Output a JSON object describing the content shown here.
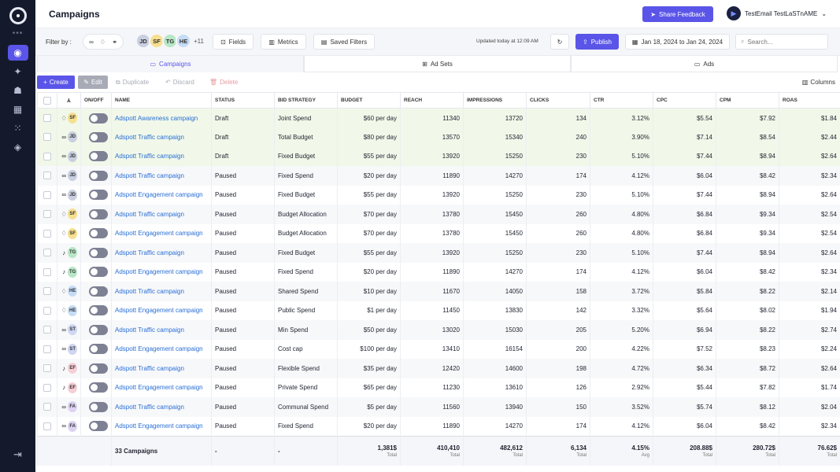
{
  "header": {
    "title": "Campaigns",
    "share_feedback": "Share Feedback",
    "user_name": "TestEmail TestLaSTnAME"
  },
  "filterbar": {
    "filter_label": "Filter by :",
    "avatars": [
      {
        "initials": "JD",
        "color": "#c9cfe0"
      },
      {
        "initials": "SF",
        "color": "#f6df8f"
      },
      {
        "initials": "TG",
        "color": "#b8e6c6"
      },
      {
        "initials": "HE",
        "color": "#c6dcf5"
      }
    ],
    "avatars_more": "+11",
    "fields": "Fields",
    "metrics": "Metrics",
    "saved_filters": "Saved Filters",
    "updated": "Updated today at 12:09 AM",
    "publish": "Publish",
    "date_range": "Jan 18, 2024 to Jan 24, 2024",
    "search_placeholder": "Search..."
  },
  "tabs": [
    {
      "label": "Campaigns",
      "icon": "folder-icon"
    },
    {
      "label": "Ad Sets",
      "icon": "grid-icon"
    },
    {
      "label": "Ads",
      "icon": "ad-icon"
    }
  ],
  "actions": {
    "create": "Create",
    "edit": "Edit",
    "duplicate": "Duplicate",
    "discard": "Discard",
    "delete": "Delete",
    "columns": "Columns"
  },
  "columns": [
    "ON/OFF",
    "NAME",
    "STATUS",
    "BID STRATEGY",
    "BUDGET",
    "REACH",
    "IMPRESSIONS",
    "CLICKS",
    "CTR",
    "CPC",
    "CPM",
    "ROAS"
  ],
  "rows": [
    {
      "platform": "snapchat",
      "av": "SF",
      "name": "Adspott Awareness campaign",
      "status": "Draft",
      "bid": "Joint Spend",
      "budget": "$60 per day",
      "reach": "11340",
      "impr": "13720",
      "clicks": "134",
      "ctr": "3.12%",
      "cpc": "$5.54",
      "cpm": "$7.92",
      "roas": "$1.84"
    },
    {
      "platform": "meta",
      "av": "JD",
      "name": "Adspott Traffic campaign",
      "status": "Draft",
      "bid": "Total Budget",
      "budget": "$80 per day",
      "reach": "13570",
      "impr": "15340",
      "clicks": "240",
      "ctr": "3.90%",
      "cpc": "$7.14",
      "cpm": "$8.54",
      "roas": "$2.44"
    },
    {
      "platform": "meta",
      "av": "JD",
      "name": "Adspott Traffic campaign",
      "status": "Draft",
      "bid": "Fixed Budget",
      "budget": "$55 per day",
      "reach": "13920",
      "impr": "15250",
      "clicks": "230",
      "ctr": "5.10%",
      "cpc": "$7.44",
      "cpm": "$8.94",
      "roas": "$2.64"
    },
    {
      "platform": "meta",
      "av": "JD",
      "name": "Adspott Traffic campaign",
      "status": "Paused",
      "bid": "Fixed Spend",
      "budget": "$20 per day",
      "reach": "11890",
      "impr": "14270",
      "clicks": "174",
      "ctr": "4.12%",
      "cpc": "$6.04",
      "cpm": "$8.42",
      "roas": "$2.34"
    },
    {
      "platform": "meta",
      "av": "JD",
      "name": "Adspott Engagement campaign",
      "status": "Paused",
      "bid": "Fixed Budget",
      "budget": "$55 per day",
      "reach": "13920",
      "impr": "15250",
      "clicks": "230",
      "ctr": "5.10%",
      "cpc": "$7.44",
      "cpm": "$8.94",
      "roas": "$2.64"
    },
    {
      "platform": "snapchat",
      "av": "SF",
      "name": "Adspott Traffic campaign",
      "status": "Paused",
      "bid": "Budget Allocation",
      "budget": "$70 per day",
      "reach": "13780",
      "impr": "15450",
      "clicks": "260",
      "ctr": "4.80%",
      "cpc": "$6.84",
      "cpm": "$9.34",
      "roas": "$2.54"
    },
    {
      "platform": "snapchat",
      "av": "SF",
      "name": "Adspott Engagement campaign",
      "status": "Paused",
      "bid": "Budget Allocation",
      "budget": "$70 per day",
      "reach": "13780",
      "impr": "15450",
      "clicks": "260",
      "ctr": "4.80%",
      "cpc": "$6.84",
      "cpm": "$9.34",
      "roas": "$2.54"
    },
    {
      "platform": "tiktok",
      "av": "TG",
      "name": "Adspott Traffic campaign",
      "status": "Paused",
      "bid": "Fixed Budget",
      "budget": "$55 per day",
      "reach": "13920",
      "impr": "15250",
      "clicks": "230",
      "ctr": "5.10%",
      "cpc": "$7.44",
      "cpm": "$8.94",
      "roas": "$2.64"
    },
    {
      "platform": "tiktok",
      "av": "TG",
      "name": "Adspott Engagement campaign",
      "status": "Paused",
      "bid": "Fixed Spend",
      "budget": "$20 per day",
      "reach": "11890",
      "impr": "14270",
      "clicks": "174",
      "ctr": "4.12%",
      "cpc": "$6.04",
      "cpm": "$8.42",
      "roas": "$2.34"
    },
    {
      "platform": "snapchat",
      "av": "HE",
      "name": "Adspott Traffic campaign",
      "status": "Paused",
      "bid": "Shared Spend",
      "budget": "$10 per day",
      "reach": "11670",
      "impr": "14050",
      "clicks": "158",
      "ctr": "3.72%",
      "cpc": "$5.84",
      "cpm": "$8.22",
      "roas": "$2.14"
    },
    {
      "platform": "snapchat",
      "av": "HE",
      "name": "Adspott Engagement campaign",
      "status": "Paused",
      "bid": "Public Spend",
      "budget": "$1 per day",
      "reach": "11450",
      "impr": "13830",
      "clicks": "142",
      "ctr": "3.32%",
      "cpc": "$5.64",
      "cpm": "$8.02",
      "roas": "$1.94"
    },
    {
      "platform": "meta",
      "av": "ST",
      "name": "Adspott Traffic campaign",
      "status": "Paused",
      "bid": "Min Spend",
      "budget": "$50 per day",
      "reach": "13020",
      "impr": "15030",
      "clicks": "205",
      "ctr": "5.20%",
      "cpc": "$6.94",
      "cpm": "$8.22",
      "roas": "$2.74"
    },
    {
      "platform": "meta",
      "av": "ST",
      "name": "Adspott Engagement campaign",
      "status": "Paused",
      "bid": "Cost cap",
      "budget": "$100 per day",
      "reach": "13410",
      "impr": "16154",
      "clicks": "200",
      "ctr": "4.22%",
      "cpc": "$7.52",
      "cpm": "$8.23",
      "roas": "$2.24"
    },
    {
      "platform": "tiktok",
      "av": "EF",
      "name": "Adspott Traffic campaign",
      "status": "Paused",
      "bid": "Flexible Spend",
      "budget": "$35 per day",
      "reach": "12420",
      "impr": "14600",
      "clicks": "198",
      "ctr": "4.72%",
      "cpc": "$6.34",
      "cpm": "$8.72",
      "roas": "$2.64"
    },
    {
      "platform": "tiktok",
      "av": "EF",
      "name": "Adspott Engagement campaign",
      "status": "Paused",
      "bid": "Private Spend",
      "budget": "$65 per day",
      "reach": "11230",
      "impr": "13610",
      "clicks": "126",
      "ctr": "2.92%",
      "cpc": "$5.44",
      "cpm": "$7.82",
      "roas": "$1.74"
    },
    {
      "platform": "meta",
      "av": "FA",
      "name": "Adspott Traffic campaign",
      "status": "Paused",
      "bid": "Communal Spend",
      "budget": "$5 per day",
      "reach": "11560",
      "impr": "13940",
      "clicks": "150",
      "ctr": "3.52%",
      "cpc": "$5.74",
      "cpm": "$8.12",
      "roas": "$2.04"
    },
    {
      "platform": "meta",
      "av": "FA",
      "name": "Adspott Engagement campaign",
      "status": "Paused",
      "bid": "Fixed Spend",
      "budget": "$20 per day",
      "reach": "11890",
      "impr": "14270",
      "clicks": "174",
      "ctr": "4.12%",
      "cpc": "$6.04",
      "cpm": "$8.42",
      "roas": "$2.34"
    }
  ],
  "avatar_colors": {
    "SF": "#f6df8f",
    "JD": "#c9cfe0",
    "TG": "#b8e6c6",
    "HE": "#c6dcf5",
    "ST": "#cfd6f3",
    "EF": "#f6cfd6",
    "FA": "#dcd3f3"
  },
  "platform_icons": {
    "meta": "∞",
    "snapchat": "♢",
    "tiktok": "♪"
  },
  "footer": {
    "count": "33 Campaigns",
    "status": "-",
    "bid": "-",
    "budget": "1,381$",
    "budget_sub": "Total",
    "reach": "410,410",
    "reach_sub": "Total",
    "impr": "482,612",
    "impr_sub": "Total",
    "clicks": "6,134",
    "clicks_sub": "Total",
    "ctr": "4.15%",
    "ctr_sub": "Avg",
    "cpc": "208.88$",
    "cpc_sub": "Total",
    "cpm": "280.72$",
    "cpm_sub": "Total",
    "roas": "76.62$",
    "roas_sub": "Total"
  }
}
